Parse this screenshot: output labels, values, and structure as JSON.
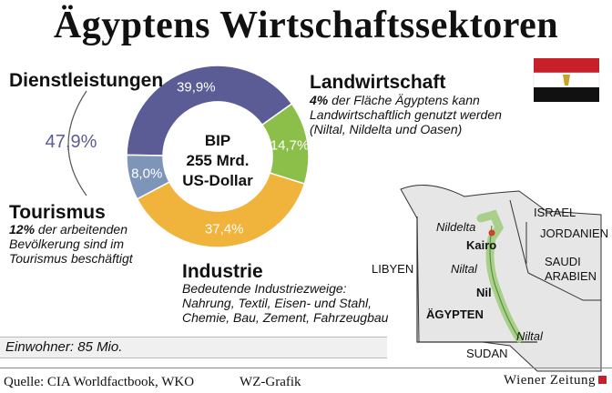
{
  "title": "Ägyptens Wirtschaftssektoren",
  "chart_data": {
    "type": "pie",
    "center_label": [
      "BIP",
      "255 Mrd.",
      "US-Dollar"
    ],
    "slices": [
      {
        "name": "Dienstleistungen",
        "value": 39.9,
        "label": "39,9%",
        "color": "#5b5b96"
      },
      {
        "name": "Landwirtschaft",
        "value": 14.7,
        "label": "14,7%",
        "color": "#8cbf4a"
      },
      {
        "name": "Industrie",
        "value": 37.4,
        "label": "37,4%",
        "color": "#f0b43c"
      },
      {
        "name": "Tourismus",
        "value": 8.0,
        "label": "8,0%",
        "color": "#7e95ba"
      }
    ],
    "group_total": {
      "label": "47,9%",
      "members": [
        "Dienstleistungen",
        "Tourismus"
      ]
    }
  },
  "sectors": {
    "dienst": {
      "name": "Dienstleistungen"
    },
    "tourismus": {
      "name": "Tourismus",
      "note_bold": "12%",
      "note": " der arbeitenden Bevölkerung sind im Tourismus beschäftigt"
    },
    "land": {
      "name": "Landwirtschaft",
      "note_bold": "4%",
      "note": " der Fläche Ägyptens kann Landwirtschaftlich genutzt werden (Niltal, Nildelta und Oasen)"
    },
    "industrie": {
      "name": "Industrie",
      "note": "Bedeutende Industriezweige: Nahrung, Textil, Eisen- und Stahl, Chemie, Bau, Zement, Fahrzeugbau"
    }
  },
  "population": "Einwohner: 85 Mio.",
  "map": {
    "labels": {
      "nildelta": "Nildelta",
      "kairo": "Kairo",
      "niltal1": "Niltal",
      "nil": "Nil",
      "niltal2": "Niltal",
      "aegypten": "ÄGYPTEN",
      "libyen": "LIBYEN",
      "sudan": "SUDAN",
      "israel": "ISRAEL",
      "jordanien": "JORDANIEN",
      "saudi1": "SAUDI",
      "saudi2": "ARABIEN"
    },
    "colors": {
      "land": "#e6e6e6",
      "border": "#333333",
      "nile": "#a8d08a",
      "capital": "#d0402a"
    }
  },
  "flag": {
    "colors": [
      "#c7202b",
      "#ffffff",
      "#111111"
    ],
    "emblem": "#c9a227"
  },
  "footer": {
    "source": "Quelle: CIA Worldfactbook, WKO",
    "credit": "WZ-Grafik",
    "brand": "Wiener Zeitung"
  }
}
